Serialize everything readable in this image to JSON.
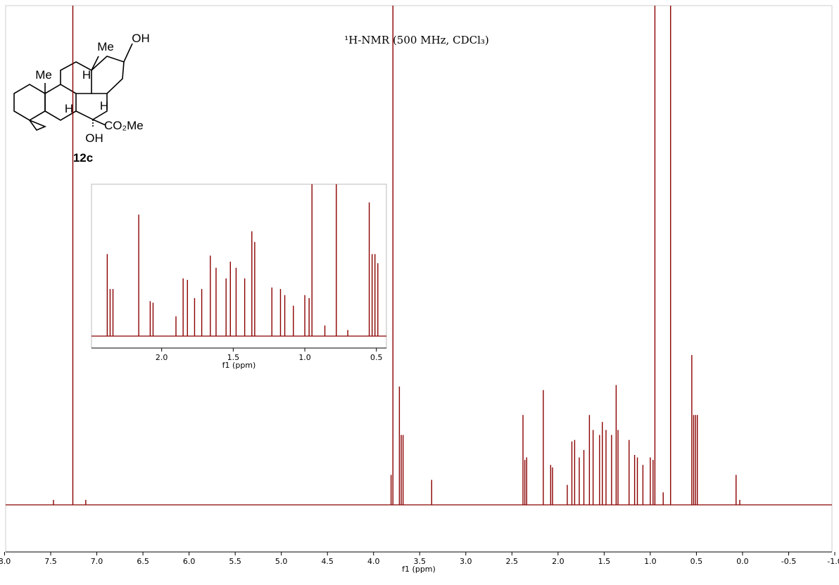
{
  "chart_data": [
    {
      "type": "spectrum",
      "title": "¹H-NMR (500 MHz, CDCl₃)",
      "xlabel": "f1 (ppm)",
      "color": "#8b0000",
      "xlim": [
        8.0,
        -1.0
      ],
      "ylim": [
        0,
        100
      ],
      "xticks": [
        {
          "value": 8,
          "label": "8.0"
        },
        7.5,
        {
          "value": 7,
          "label": "7.0"
        },
        6.5,
        {
          "value": 6,
          "label": "6.0"
        },
        5.5,
        {
          "value": 5,
          "label": "5.0"
        },
        4.5,
        {
          "value": 4,
          "label": "4.0"
        },
        3.5,
        {
          "value": 3,
          "label": "3.0"
        },
        2.5,
        {
          "value": 2,
          "label": "2.0"
        },
        1.5,
        {
          "value": 1,
          "label": "1.0"
        },
        0.5,
        {
          "value": 0,
          "label": "0.0"
        },
        -0.5,
        {
          "value": -1,
          "label": "-1.0"
        }
      ],
      "x": [
        7.47,
        7.26,
        7.12,
        3.81,
        3.79,
        3.72,
        3.7,
        3.68,
        3.37,
        2.38,
        2.36,
        2.34,
        2.16,
        2.08,
        2.06,
        1.9,
        1.85,
        1.82,
        1.77,
        1.72,
        1.66,
        1.62,
        1.55,
        1.52,
        1.48,
        1.42,
        1.37,
        1.35,
        1.23,
        1.17,
        1.14,
        1.08,
        1.0,
        0.97,
        0.95,
        0.86,
        0.78,
        0.55,
        0.53,
        0.51,
        0.49,
        0.07,
        0.03
      ],
      "values": [
        1,
        120,
        1,
        6,
        120,
        23.7,
        14,
        14,
        5,
        18,
        9,
        9.5,
        23,
        8,
        7.5,
        4,
        12.7,
        13,
        9.5,
        11,
        18,
        15,
        14,
        16.6,
        15,
        14,
        24,
        15,
        13,
        10,
        9.5,
        8,
        9.5,
        9,
        120,
        2.5,
        120,
        30,
        18,
        18,
        18,
        6,
        1
      ]
    },
    {
      "type": "spectrum",
      "xlabel": "f1 (ppm)",
      "color": "#8b0000",
      "xlim": [
        2.49,
        0.43
      ],
      "ylim": [
        0,
        100
      ],
      "xticks": [
        {
          "value": 2,
          "label": "2.0"
        },
        1.5,
        {
          "value": 1,
          "label": "1.0"
        },
        0.5
      ],
      "x": [
        2.38,
        2.36,
        2.34,
        2.16,
        2.08,
        2.06,
        1.9,
        1.85,
        1.82,
        1.77,
        1.72,
        1.66,
        1.62,
        1.55,
        1.52,
        1.48,
        1.42,
        1.37,
        1.35,
        1.23,
        1.17,
        1.14,
        1.08,
        1.0,
        0.97,
        0.95,
        0.86,
        0.78,
        0.7,
        0.55,
        0.53,
        0.51,
        0.49
      ],
      "values": [
        54,
        31,
        31,
        80,
        23,
        22,
        13,
        38,
        37,
        25,
        31,
        53,
        45,
        38,
        49,
        45,
        38,
        69,
        62,
        32,
        31,
        27,
        20,
        27,
        25,
        120,
        7,
        120,
        4,
        88,
        54,
        54,
        48
      ]
    }
  ],
  "structure_labels": [
    "Me",
    "OH",
    "Me",
    "H",
    "H",
    "H",
    "CO₂Me",
    "OH",
    "12c"
  ]
}
